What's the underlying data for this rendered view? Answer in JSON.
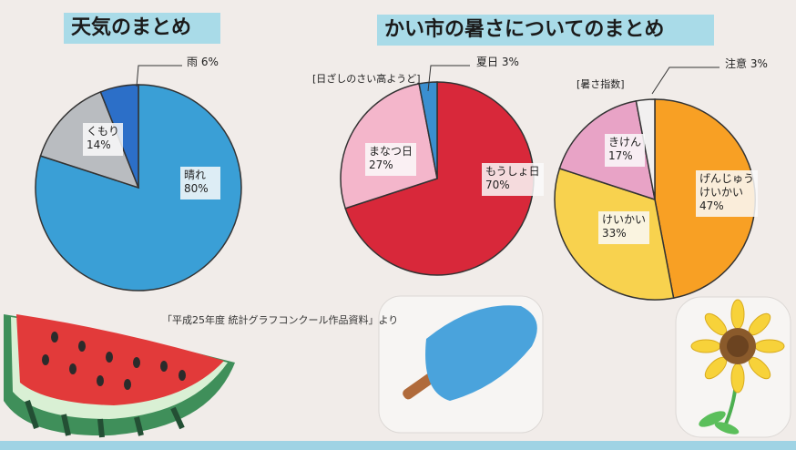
{
  "titles": {
    "left": "天気のまとめ",
    "right": "かい市の暑さについてのまとめ"
  },
  "source": "「平成25年度 統計グラフコンクール作品資料」より",
  "chart_data": [
    {
      "type": "pie",
      "title": "天気のまとめ",
      "subtitle": "",
      "slices": [
        {
          "label": "晴れ",
          "value": 80,
          "text": "80%",
          "color": "#3a9fd6"
        },
        {
          "label": "くもり",
          "value": 14,
          "text": "14%",
          "color": "#b9bcc0"
        },
        {
          "label": "雨",
          "value": 6,
          "text": "6%",
          "color": "#2c6fc8"
        }
      ]
    },
    {
      "type": "pie",
      "title": "",
      "subtitle": "[日ざしのさい高ようど]",
      "slices": [
        {
          "label": "もうしょ日",
          "value": 70,
          "text": "70%",
          "color": "#d8283a"
        },
        {
          "label": "まなつ日",
          "value": 27,
          "text": "27%",
          "color": "#f4b6cb"
        },
        {
          "label": "夏日",
          "value": 3,
          "text": "3%",
          "color": "#3a8fd0"
        }
      ]
    },
    {
      "type": "pie",
      "title": "",
      "subtitle": "[暑さ指数]",
      "slices": [
        {
          "label": "げんじゅう けいかい",
          "value": 47,
          "text": "47%",
          "color": "#f8a024"
        },
        {
          "label": "けいかい",
          "value": 33,
          "text": "33%",
          "color": "#f8d24e"
        },
        {
          "label": "きけん",
          "value": 17,
          "text": "17%",
          "color": "#e8a3c6"
        },
        {
          "label": "注意",
          "value": 3,
          "text": "3%",
          "color": "#f2f0f0"
        }
      ]
    }
  ],
  "decorations": {
    "watermelon": "watermelon-illustration",
    "popsicle": "popsicle-illustration",
    "sunflower": "sunflower-illustration"
  }
}
